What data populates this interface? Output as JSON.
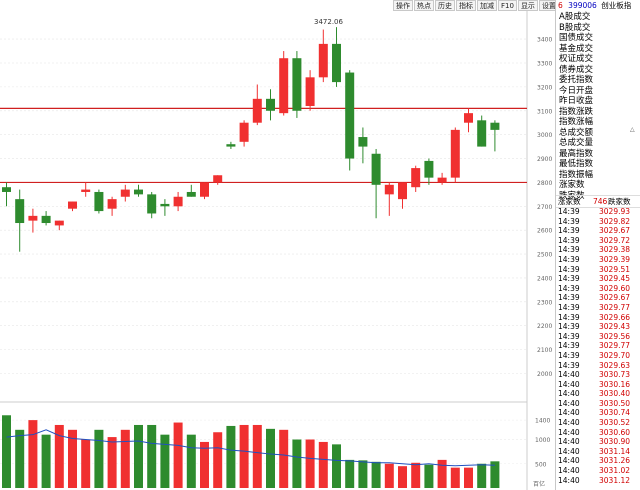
{
  "toolbar": {
    "buttons": [
      "操作",
      "热点",
      "历史",
      "指标",
      "加减",
      "F10",
      "显示",
      "设置"
    ]
  },
  "panel": {
    "number": "6",
    "code": "399006",
    "name": "创业板指",
    "indicators": [
      "A股成交",
      "B股成交",
      "国债成交",
      "基金成交",
      "权证成交",
      "债券成交",
      "委托指数",
      "今日开盘",
      "昨日收盘",
      "指数涨跌",
      "指数涨幅",
      "总成交额",
      "总成交量",
      "最高指数",
      "最低指数",
      "指数振幅",
      "涨家数",
      "跌家数"
    ],
    "tick_header": {
      "left": "涨家数",
      "mid": "746",
      "right": "跌家数"
    },
    "ticks": [
      {
        "t": "14:39",
        "p": "3029.93"
      },
      {
        "t": "14:39",
        "p": "3029.82"
      },
      {
        "t": "14:39",
        "p": "3029.67"
      },
      {
        "t": "14:39",
        "p": "3029.72"
      },
      {
        "t": "14:39",
        "p": "3029.38"
      },
      {
        "t": "14:39",
        "p": "3029.39"
      },
      {
        "t": "14:39",
        "p": "3029.51"
      },
      {
        "t": "14:39",
        "p": "3029.45"
      },
      {
        "t": "14:39",
        "p": "3029.60"
      },
      {
        "t": "14:39",
        "p": "3029.67"
      },
      {
        "t": "14:39",
        "p": "3029.77"
      },
      {
        "t": "14:39",
        "p": "3029.66"
      },
      {
        "t": "14:39",
        "p": "3029.43"
      },
      {
        "t": "14:39",
        "p": "3029.56"
      },
      {
        "t": "14:39",
        "p": "3029.77"
      },
      {
        "t": "14:39",
        "p": "3029.70"
      },
      {
        "t": "14:39",
        "p": "3029.63"
      },
      {
        "t": "14:40",
        "p": "3030.73"
      },
      {
        "t": "14:40",
        "p": "3030.16"
      },
      {
        "t": "14:40",
        "p": "3030.40"
      },
      {
        "t": "14:40",
        "p": "3030.50"
      },
      {
        "t": "14:40",
        "p": "3030.74"
      },
      {
        "t": "14:40",
        "p": "3030.52"
      },
      {
        "t": "14:40",
        "p": "3030.60"
      },
      {
        "t": "14:40",
        "p": "3030.90"
      },
      {
        "t": "14:40",
        "p": "3031.14"
      },
      {
        "t": "14:40",
        "p": "3031.26"
      },
      {
        "t": "14:40",
        "p": "3031.02"
      },
      {
        "t": "14:40",
        "p": "3031.12"
      }
    ],
    "side_label": "△"
  },
  "chart_data": {
    "type": "candlestick",
    "peak_label": "3472.06",
    "y_ticks": [
      3400,
      3300,
      3200,
      3100,
      3000,
      2900,
      2800,
      2700,
      2600,
      2500,
      2400,
      2300,
      2200,
      2100,
      2000
    ],
    "y_tick_labels": [
      "3400",
      "3300",
      "3200",
      "3100",
      "3000",
      "2900",
      "2800",
      "2700",
      "2600",
      "2500",
      "2400",
      "2300",
      "2200",
      "2100",
      "2000"
    ],
    "ylim": [
      1910,
      3480
    ],
    "h_lines": [
      3110,
      2800
    ],
    "colors": {
      "up": "#f03030",
      "down": "#2e8b2e",
      "hline": "#d02020",
      "ma": "#2050c0"
    },
    "candles": [
      {
        "o": 2780,
        "h": 2800,
        "l": 2700,
        "c": 2760
      },
      {
        "o": 2730,
        "h": 2770,
        "l": 2510,
        "c": 2630
      },
      {
        "o": 2640,
        "h": 2690,
        "l": 2590,
        "c": 2660
      },
      {
        "o": 2660,
        "h": 2680,
        "l": 2620,
        "c": 2630
      },
      {
        "o": 2620,
        "h": 2640,
        "l": 2600,
        "c": 2640
      },
      {
        "o": 2690,
        "h": 2720,
        "l": 2680,
        "c": 2720
      },
      {
        "o": 2760,
        "h": 2800,
        "l": 2740,
        "c": 2770
      },
      {
        "o": 2760,
        "h": 2770,
        "l": 2670,
        "c": 2680
      },
      {
        "o": 2690,
        "h": 2740,
        "l": 2660,
        "c": 2730
      },
      {
        "o": 2740,
        "h": 2790,
        "l": 2720,
        "c": 2770
      },
      {
        "o": 2770,
        "h": 2790,
        "l": 2740,
        "c": 2750
      },
      {
        "o": 2750,
        "h": 2760,
        "l": 2650,
        "c": 2670
      },
      {
        "o": 2710,
        "h": 2730,
        "l": 2660,
        "c": 2700
      },
      {
        "o": 2700,
        "h": 2760,
        "l": 2680,
        "c": 2740
      },
      {
        "o": 2760,
        "h": 2790,
        "l": 2740,
        "c": 2740
      },
      {
        "o": 2740,
        "h": 2800,
        "l": 2730,
        "c": 2800
      },
      {
        "o": 2800,
        "h": 2830,
        "l": 2790,
        "c": 2830
      },
      {
        "o": 2960,
        "h": 2970,
        "l": 2940,
        "c": 2950
      },
      {
        "o": 2970,
        "h": 3060,
        "l": 2950,
        "c": 3050
      },
      {
        "o": 3050,
        "h": 3210,
        "l": 3040,
        "c": 3150
      },
      {
        "o": 3150,
        "h": 3190,
        "l": 3060,
        "c": 3100
      },
      {
        "o": 3090,
        "h": 3350,
        "l": 3080,
        "c": 3320
      },
      {
        "o": 3320,
        "h": 3350,
        "l": 3070,
        "c": 3100
      },
      {
        "o": 3120,
        "h": 3270,
        "l": 3100,
        "c": 3240
      },
      {
        "o": 3240,
        "h": 3440,
        "l": 3220,
        "c": 3380
      },
      {
        "o": 3380,
        "h": 3450,
        "l": 3200,
        "c": 3220
      },
      {
        "o": 3260,
        "h": 3270,
        "l": 2850,
        "c": 2900
      },
      {
        "o": 2990,
        "h": 3030,
        "l": 2880,
        "c": 2950
      },
      {
        "o": 2920,
        "h": 2940,
        "l": 2650,
        "c": 2790
      },
      {
        "o": 2750,
        "h": 2800,
        "l": 2660,
        "c": 2790
      },
      {
        "o": 2730,
        "h": 2800,
        "l": 2690,
        "c": 2800
      },
      {
        "o": 2780,
        "h": 2870,
        "l": 2760,
        "c": 2860
      },
      {
        "o": 2890,
        "h": 2900,
        "l": 2790,
        "c": 2820
      },
      {
        "o": 2800,
        "h": 2840,
        "l": 2790,
        "c": 2820
      },
      {
        "o": 2820,
        "h": 3030,
        "l": 2800,
        "c": 3020
      },
      {
        "o": 3050,
        "h": 3110,
        "l": 3010,
        "c": 3090
      },
      {
        "o": 3060,
        "h": 3080,
        "l": 2950,
        "c": 2950
      },
      {
        "o": 3050,
        "h": 3060,
        "l": 2930,
        "c": 3020
      }
    ],
    "volume_ticks": [
      "1400",
      "1000",
      "500"
    ],
    "volume_unit": "百亿",
    "volume_ylim": [
      0,
      1650
    ],
    "volumes": [
      1500,
      1200,
      1400,
      1100,
      1300,
      1200,
      1000,
      1200,
      1050,
      1200,
      1300,
      1300,
      1100,
      1350,
      1100,
      950,
      1150,
      1280,
      1300,
      1300,
      1220,
      1200,
      1000,
      1000,
      950,
      900,
      580,
      570,
      540,
      500,
      450,
      520,
      480,
      580,
      420,
      420,
      500,
      550
    ],
    "ma": [
      1050,
      1080,
      1100,
      1200,
      1080,
      1020,
      1000,
      980,
      950,
      960,
      970,
      920,
      900,
      880,
      830,
      820,
      830,
      780,
      760,
      730,
      700,
      680,
      640,
      610,
      590,
      570,
      560,
      540,
      520,
      520,
      500,
      480,
      500,
      470,
      460,
      470,
      480,
      470
    ]
  }
}
